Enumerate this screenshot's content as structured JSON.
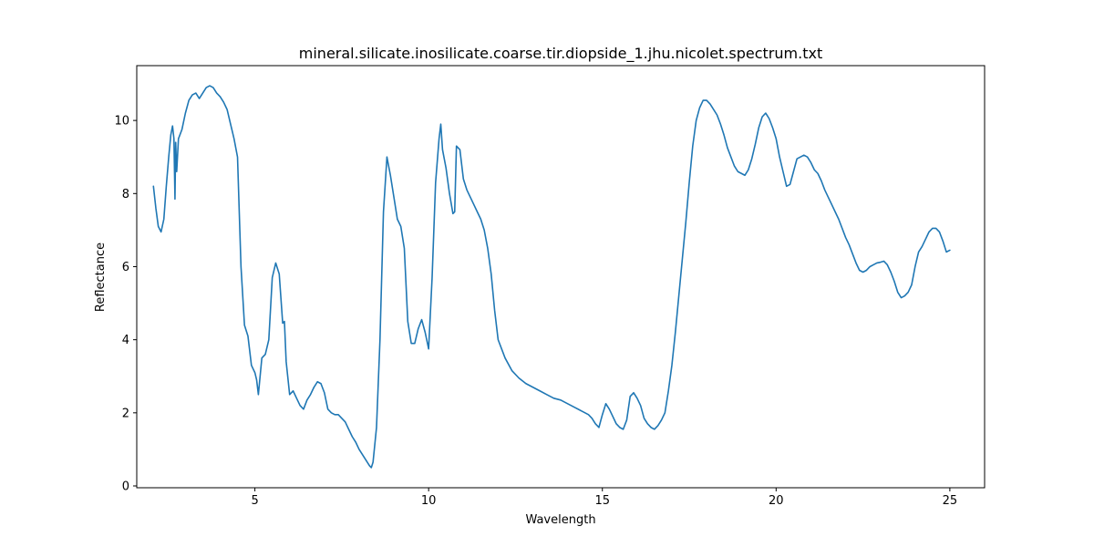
{
  "chart_data": {
    "type": "line",
    "title": "mineral.silicate.inosilicate.coarse.tir.diopside_1.jhu.nicolet.spectrum.txt",
    "xlabel": "Wavelength",
    "ylabel": "Reflectance",
    "xlim": [
      1.6,
      26.0
    ],
    "ylim": [
      -0.05,
      11.5
    ],
    "xticks": [
      5,
      10,
      15,
      20,
      25
    ],
    "yticks": [
      0,
      2,
      4,
      6,
      8,
      10
    ],
    "grid": false,
    "legend": "none",
    "series": [
      {
        "color": "#1f77b4",
        "x": [
          2.08,
          2.15,
          2.22,
          2.3,
          2.38,
          2.45,
          2.52,
          2.58,
          2.63,
          2.67,
          2.7,
          2.72,
          2.75,
          2.8,
          2.9,
          3.0,
          3.1,
          3.2,
          3.3,
          3.4,
          3.5,
          3.6,
          3.7,
          3.8,
          3.9,
          4.0,
          4.1,
          4.2,
          4.3,
          4.4,
          4.5,
          4.6,
          4.7,
          4.8,
          4.9,
          5.0,
          5.05,
          5.1,
          5.2,
          5.3,
          5.4,
          5.5,
          5.6,
          5.7,
          5.8,
          5.85,
          5.9,
          6.0,
          6.1,
          6.2,
          6.3,
          6.4,
          6.5,
          6.6,
          6.7,
          6.8,
          6.9,
          7.0,
          7.1,
          7.2,
          7.3,
          7.4,
          7.5,
          7.6,
          7.7,
          7.8,
          7.9,
          8.0,
          8.1,
          8.2,
          8.3,
          8.35,
          8.4,
          8.5,
          8.6,
          8.7,
          8.8,
          8.9,
          9.0,
          9.1,
          9.2,
          9.3,
          9.4,
          9.5,
          9.6,
          9.7,
          9.8,
          9.9,
          10.0,
          10.1,
          10.2,
          10.3,
          10.35,
          10.4,
          10.5,
          10.6,
          10.7,
          10.75,
          10.8,
          10.9,
          11.0,
          11.1,
          11.2,
          11.3,
          11.4,
          11.5,
          11.6,
          11.7,
          11.8,
          11.9,
          12.0,
          12.2,
          12.4,
          12.6,
          12.8,
          13.0,
          13.2,
          13.4,
          13.6,
          13.8,
          14.0,
          14.2,
          14.4,
          14.6,
          14.7,
          14.8,
          14.9,
          15.0,
          15.1,
          15.2,
          15.3,
          15.4,
          15.5,
          15.6,
          15.7,
          15.8,
          15.9,
          16.0,
          16.1,
          16.2,
          16.3,
          16.4,
          16.5,
          16.6,
          16.7,
          16.8,
          16.9,
          17.0,
          17.1,
          17.2,
          17.3,
          17.4,
          17.5,
          17.6,
          17.7,
          17.8,
          17.9,
          18.0,
          18.1,
          18.2,
          18.3,
          18.4,
          18.5,
          18.6,
          18.7,
          18.8,
          18.9,
          19.0,
          19.1,
          19.2,
          19.3,
          19.4,
          19.5,
          19.6,
          19.7,
          19.8,
          19.9,
          20.0,
          20.1,
          20.2,
          20.3,
          20.4,
          20.5,
          20.6,
          20.7,
          20.8,
          20.9,
          21.0,
          21.1,
          21.2,
          21.3,
          21.4,
          21.5,
          21.6,
          21.7,
          21.8,
          21.9,
          22.0,
          22.1,
          22.2,
          22.3,
          22.4,
          22.5,
          22.6,
          22.7,
          22.8,
          22.9,
          23.0,
          23.1,
          23.2,
          23.3,
          23.4,
          23.5,
          23.6,
          23.7,
          23.8,
          23.9,
          24.0,
          24.1,
          24.2,
          24.3,
          24.4,
          24.5,
          24.6,
          24.7,
          24.8,
          24.9,
          25.0
        ],
        "y": [
          8.2,
          7.6,
          7.1,
          6.95,
          7.3,
          8.2,
          9.0,
          9.6,
          9.85,
          9.5,
          7.85,
          9.4,
          8.6,
          9.5,
          9.75,
          10.2,
          10.55,
          10.7,
          10.75,
          10.6,
          10.75,
          10.9,
          10.95,
          10.9,
          10.75,
          10.65,
          10.5,
          10.3,
          9.9,
          9.5,
          9.0,
          6.0,
          4.4,
          4.1,
          3.3,
          3.1,
          2.9,
          2.5,
          3.5,
          3.6,
          4.0,
          5.7,
          6.1,
          5.8,
          4.45,
          4.5,
          3.4,
          2.5,
          2.6,
          2.4,
          2.2,
          2.1,
          2.35,
          2.5,
          2.7,
          2.85,
          2.8,
          2.55,
          2.1,
          2.0,
          1.95,
          1.95,
          1.85,
          1.75,
          1.55,
          1.35,
          1.2,
          1.0,
          0.85,
          0.7,
          0.55,
          0.5,
          0.65,
          1.6,
          4.0,
          7.5,
          9.0,
          8.5,
          7.9,
          7.3,
          7.1,
          6.5,
          4.5,
          3.9,
          3.9,
          4.3,
          4.55,
          4.2,
          3.75,
          5.7,
          8.3,
          9.5,
          9.9,
          9.2,
          8.7,
          8.0,
          7.45,
          7.5,
          9.3,
          9.2,
          8.4,
          8.1,
          7.9,
          7.7,
          7.5,
          7.3,
          7.0,
          6.5,
          5.8,
          4.8,
          4.0,
          3.5,
          3.15,
          2.95,
          2.8,
          2.7,
          2.6,
          2.5,
          2.4,
          2.35,
          2.25,
          2.15,
          2.05,
          1.95,
          1.85,
          1.7,
          1.6,
          1.95,
          2.25,
          2.1,
          1.9,
          1.7,
          1.6,
          1.55,
          1.8,
          2.45,
          2.55,
          2.4,
          2.2,
          1.85,
          1.7,
          1.6,
          1.55,
          1.65,
          1.8,
          2.0,
          2.6,
          3.3,
          4.2,
          5.2,
          6.2,
          7.2,
          8.3,
          9.3,
          10.0,
          10.35,
          10.55,
          10.55,
          10.45,
          10.3,
          10.15,
          9.9,
          9.6,
          9.25,
          9.0,
          8.75,
          8.6,
          8.55,
          8.5,
          8.65,
          8.95,
          9.35,
          9.8,
          10.1,
          10.2,
          10.05,
          9.8,
          9.5,
          9.0,
          8.6,
          8.2,
          8.25,
          8.6,
          8.95,
          9.0,
          9.05,
          9.0,
          8.85,
          8.65,
          8.55,
          8.35,
          8.1,
          7.9,
          7.7,
          7.5,
          7.3,
          7.05,
          6.8,
          6.6,
          6.35,
          6.1,
          5.9,
          5.85,
          5.9,
          6.0,
          6.05,
          6.1,
          6.12,
          6.15,
          6.05,
          5.85,
          5.6,
          5.3,
          5.15,
          5.2,
          5.3,
          5.5,
          6.0,
          6.4,
          6.55,
          6.75,
          6.95,
          7.05,
          7.05,
          6.95,
          6.7,
          6.4,
          6.45
        ]
      }
    ]
  }
}
